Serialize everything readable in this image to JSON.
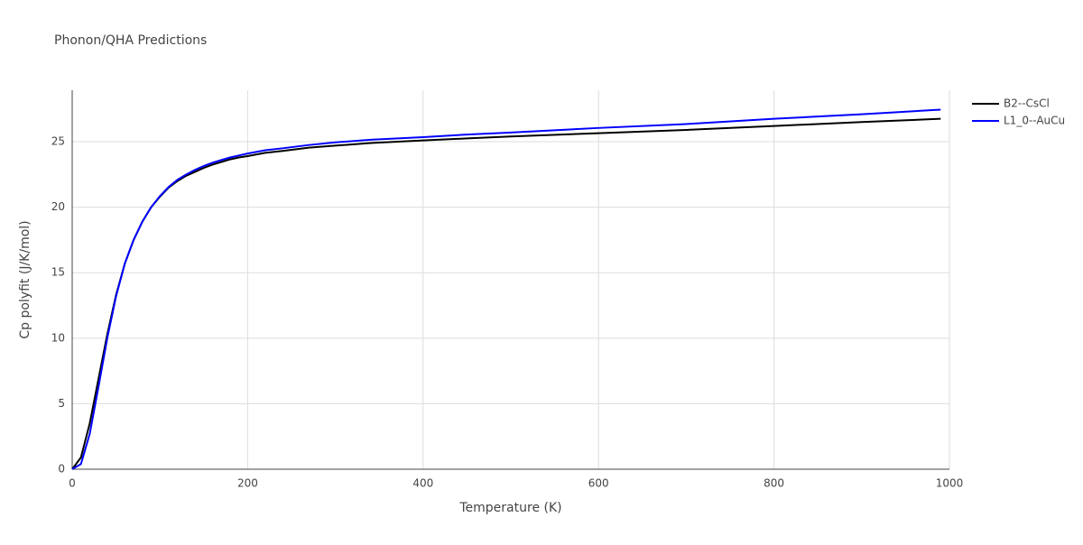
{
  "chart_data": {
    "type": "line",
    "title": "Phonon/QHA Predictions",
    "x_label": "Temperature (K)",
    "y_label": "Cp polyfit (J/K/mol)",
    "x": [
      0,
      10,
      20,
      30,
      40,
      50,
      60,
      70,
      80,
      90,
      100,
      110,
      120,
      130,
      140,
      150,
      160,
      170,
      180,
      190,
      200,
      220,
      240,
      270,
      300,
      340,
      400,
      450,
      500,
      600,
      700,
      800,
      900,
      990
    ],
    "series": [
      {
        "name": "B2--CsCl",
        "color": "#000000",
        "values": [
          0,
          0.9,
          3.5,
          6.9,
          10.3,
          13.3,
          15.7,
          17.5,
          18.9,
          20.0,
          20.8,
          21.5,
          22.0,
          22.4,
          22.7,
          23.0,
          23.25,
          23.45,
          23.65,
          23.8,
          23.9,
          24.15,
          24.3,
          24.55,
          24.7,
          24.9,
          25.1,
          25.25,
          25.4,
          25.65,
          25.9,
          26.2,
          26.5,
          26.75
        ]
      },
      {
        "name": "L1_0--AuCu",
        "color": "#0000ff",
        "values": [
          0,
          0.4,
          2.7,
          6.3,
          10.0,
          13.2,
          15.7,
          17.5,
          18.9,
          20.0,
          20.85,
          21.55,
          22.1,
          22.5,
          22.85,
          23.15,
          23.4,
          23.6,
          23.8,
          23.95,
          24.1,
          24.35,
          24.5,
          24.75,
          24.95,
          25.15,
          25.35,
          25.55,
          25.7,
          26.05,
          26.35,
          26.75,
          27.1,
          27.45
        ]
      }
    ],
    "xlim": [
      0,
      1000
    ],
    "xticks": [
      0,
      200,
      400,
      600,
      800,
      1000
    ],
    "ylim": [
      0,
      28.93
    ],
    "yticks": [
      0,
      5,
      10,
      15,
      20,
      25
    ],
    "grid": true,
    "legend": "top-right"
  }
}
